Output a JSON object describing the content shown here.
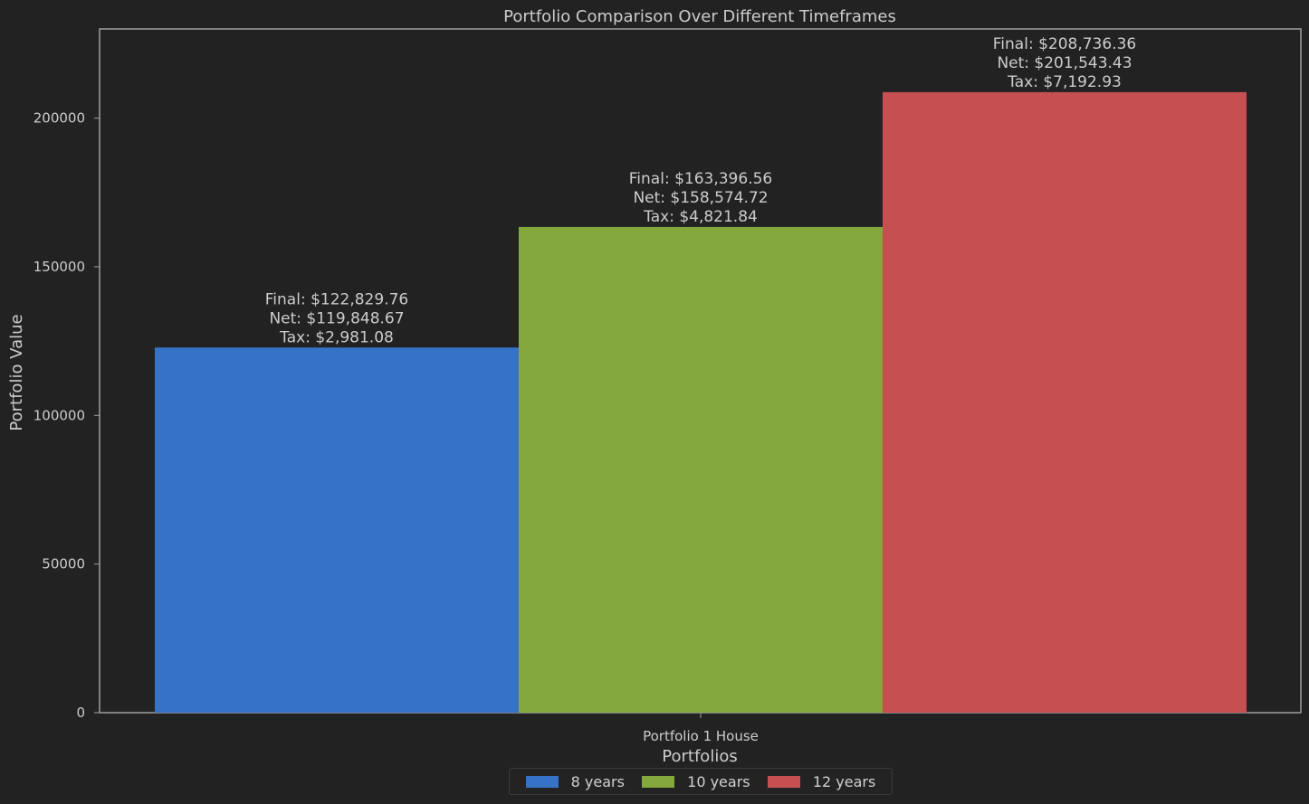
{
  "chart_data": {
    "type": "bar",
    "title": "Portfolio Comparison Over Different Timeframes",
    "xlabel": "Portfolios",
    "ylabel": "Portfolio Value",
    "categories": [
      "Portfolio 1 House"
    ],
    "ylim": [
      0,
      230000
    ],
    "yticks": [
      0,
      50000,
      100000,
      150000,
      200000
    ],
    "ytick_labels": [
      "0",
      "50000",
      "100000",
      "150000",
      "200000"
    ],
    "grid": false,
    "legend_position": "bottom-center",
    "series": [
      {
        "name": "8 years",
        "color": "#3673c6",
        "values": [
          122829.76
        ],
        "labels": [
          "Final: $122,829.76",
          "Net: $119,848.67",
          "Tax: $2,981.08"
        ]
      },
      {
        "name": "10 years",
        "color": "#84a83c",
        "values": [
          163396.56
        ],
        "labels": [
          "Final: $163,396.56",
          "Net: $158,574.72",
          "Tax: $4,821.84"
        ]
      },
      {
        "name": "12 years",
        "color": "#c64f51",
        "values": [
          208736.36
        ],
        "labels": [
          "Final: $208,736.36",
          "Net: $201,543.43",
          "Tax: $7,192.93"
        ]
      }
    ]
  },
  "colors": {
    "background": "#222222",
    "axes": "#a0a0a0",
    "text": "#cccccc"
  }
}
